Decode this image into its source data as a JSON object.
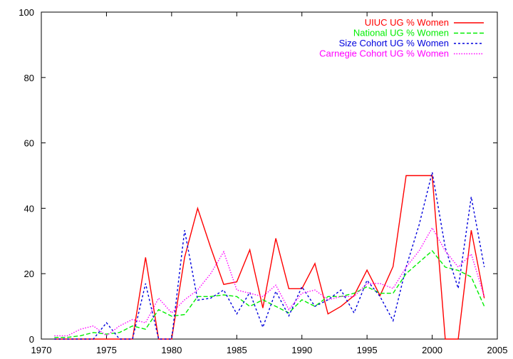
{
  "chart_data": {
    "type": "line",
    "title": "",
    "xlabel": "",
    "ylabel": "",
    "xlim": [
      1970,
      2005
    ],
    "ylim": [
      0,
      100
    ],
    "xticks": [
      1970,
      1975,
      1980,
      1985,
      1990,
      1995,
      2000,
      2005
    ],
    "yticks": [
      0,
      20,
      40,
      60,
      80,
      100
    ],
    "grid": false,
    "legend_position": "top-right",
    "x": [
      1971,
      1972,
      1973,
      1974,
      1975,
      1976,
      1977,
      1978,
      1979,
      1980,
      1981,
      1982,
      1983,
      1984,
      1985,
      1986,
      1987,
      1988,
      1989,
      1990,
      1991,
      1992,
      1993,
      1994,
      1995,
      1996,
      1997,
      1998,
      1999,
      2000,
      2001,
      2002,
      2003,
      2004
    ],
    "series": [
      {
        "name": "UIUC UG % Women",
        "color": "#ff0000",
        "dash": "solid",
        "values": [
          0,
          0,
          0,
          0,
          0,
          0,
          0,
          25,
          0,
          0,
          25,
          40,
          28,
          16.7,
          17.5,
          27.3,
          9.5,
          30.8,
          15.4,
          15.4,
          23.1,
          7.7,
          10,
          13.3,
          21.1,
          13.3,
          22.2,
          50,
          50,
          50,
          0,
          0,
          33.3,
          12.5
        ]
      },
      {
        "name": "National UG % Women",
        "color": "#00ee00",
        "dash": "long",
        "values": [
          0.5,
          0.5,
          1,
          2,
          1.5,
          2,
          4,
          3,
          9,
          7,
          7.5,
          13,
          13,
          13.5,
          13,
          10,
          12,
          10,
          8,
          12,
          10,
          13,
          13,
          14,
          16,
          14,
          14,
          20,
          23.5,
          27,
          22,
          21,
          19,
          10
        ]
      },
      {
        "name": "Size Cohort UG % Women",
        "color": "#0000dd",
        "dash": "short",
        "values": [
          0,
          0,
          0,
          0,
          5,
          0,
          0,
          17,
          0,
          0,
          33.3,
          11.9,
          12.5,
          15,
          7.7,
          14.3,
          3.6,
          14.6,
          7.1,
          16,
          10,
          12,
          15,
          8,
          18,
          13,
          5.6,
          22,
          35,
          51,
          28,
          15.5,
          43.5,
          22
        ]
      },
      {
        "name": "Carnegie Cohort UG % Women",
        "color": "#ff00ff",
        "dash": "dotted",
        "values": [
          1,
          1,
          3,
          4,
          1,
          4,
          6,
          5,
          12.5,
          8,
          12,
          15,
          20,
          26.7,
          15,
          14,
          13,
          16.5,
          9,
          14,
          15,
          12,
          13,
          13,
          17,
          17,
          15.5,
          22,
          27,
          34,
          27,
          22,
          26,
          13
        ]
      }
    ]
  }
}
